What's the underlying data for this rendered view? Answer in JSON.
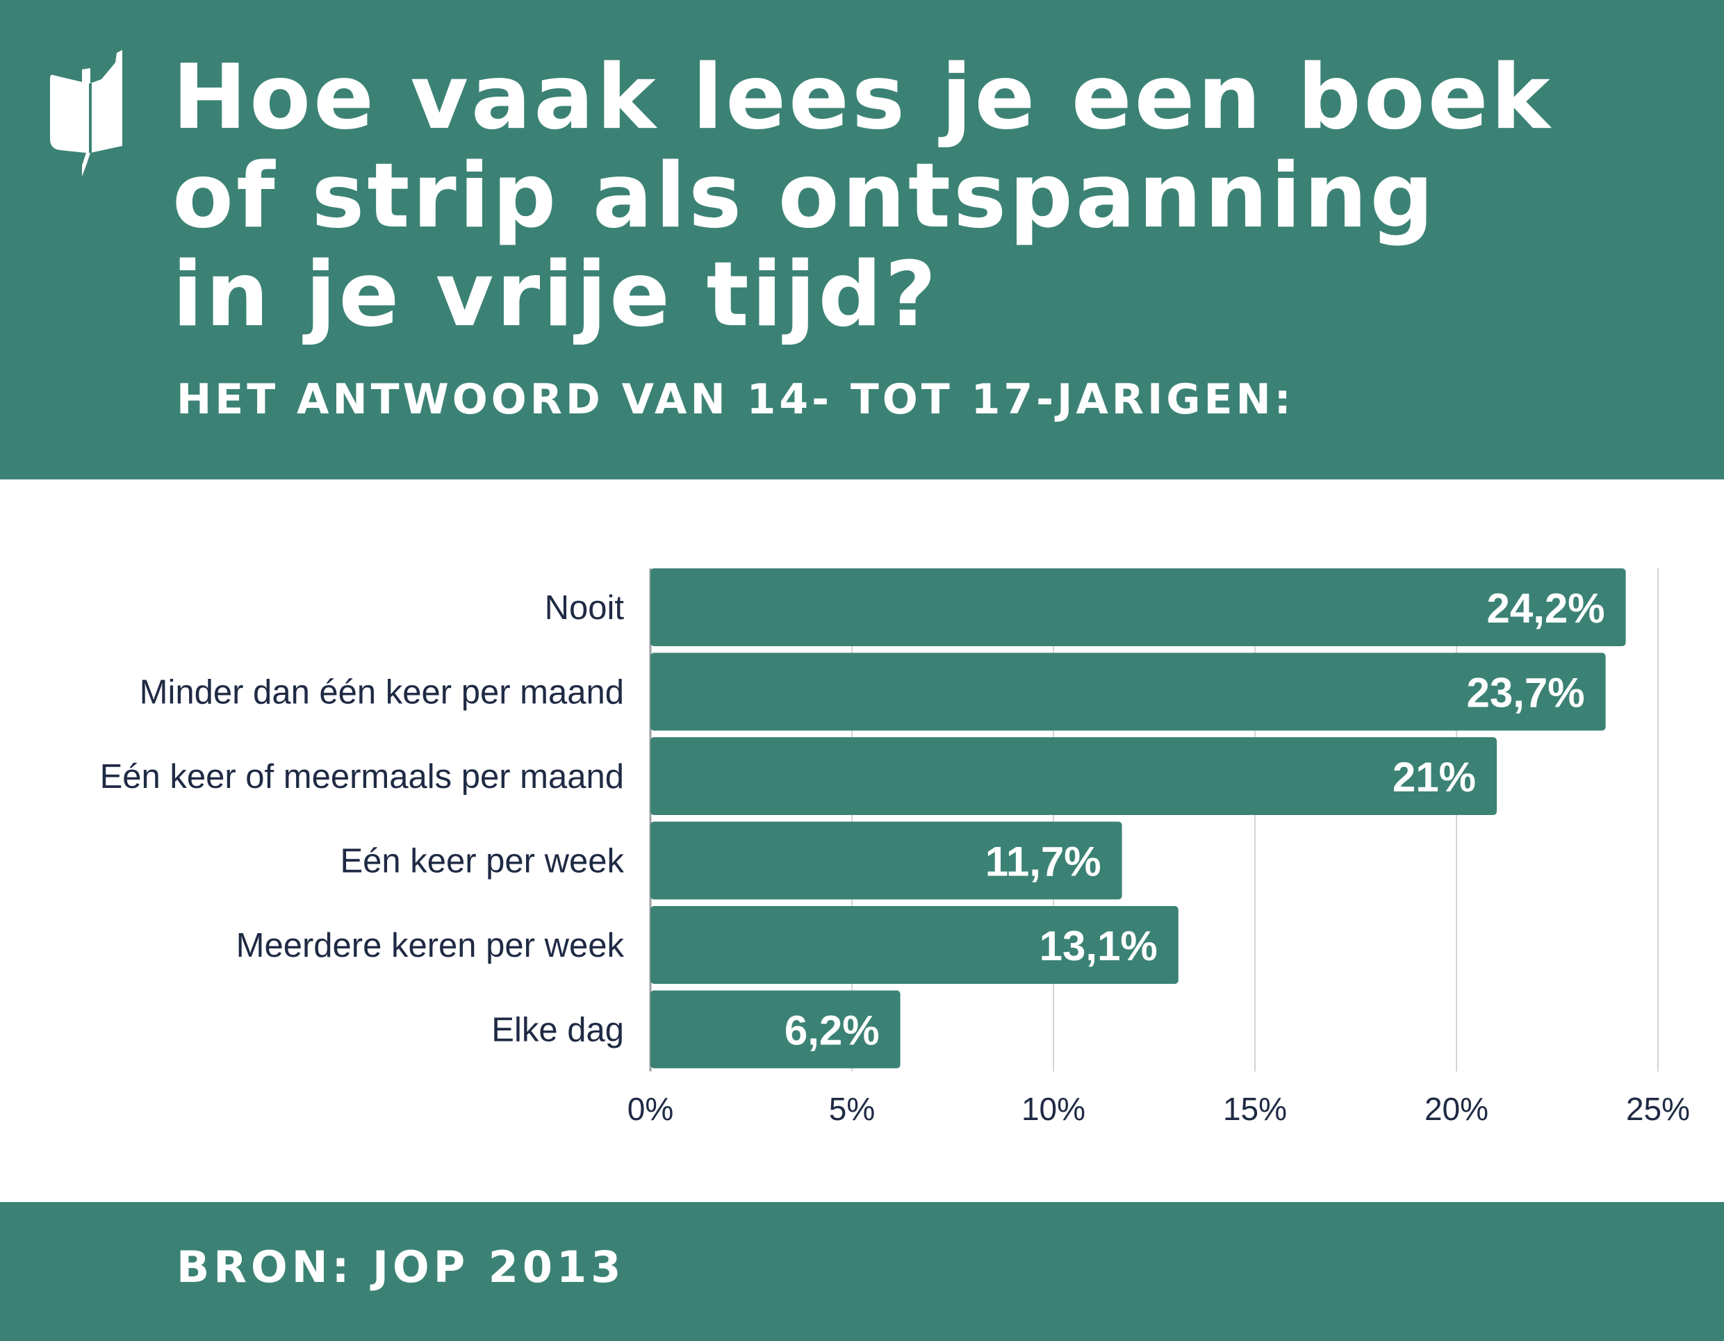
{
  "header": {
    "title": "Hoe vaak lees je een boek\nof strip als ontspanning\nin je vrije tijd?",
    "subtitle": "HET ANTWOORD VAN 14- TOT 17-JARIGEN:",
    "logo_icon": "book-speech-bubble-icon"
  },
  "footer": {
    "source": "BRON: JOP 2013"
  },
  "colors": {
    "brand": "#3b8275",
    "bar": "#3b8275",
    "label_text": "#1f2a44",
    "grid": "#d4d4d8",
    "background": "#ffffff"
  },
  "chart_data": {
    "type": "bar",
    "orientation": "horizontal",
    "categories": [
      "Nooit",
      "Minder dan één keer per maand",
      "Eén keer of meermaals per maand",
      "Eén keer per week",
      "Meerdere keren per week",
      "Elke dag"
    ],
    "values": [
      24.2,
      23.7,
      21,
      11.7,
      13.1,
      6.2
    ],
    "value_labels": [
      "24,2%",
      "23,7%",
      "21%",
      "11,7%",
      "13,1%",
      "6,2%"
    ],
    "x_ticks": [
      0,
      5,
      10,
      15,
      20,
      25
    ],
    "x_tick_labels": [
      "0%",
      "5%",
      "10%",
      "15%",
      "20%",
      "25%"
    ],
    "xlim": [
      0,
      25
    ],
    "grid": true,
    "legend": "none"
  }
}
